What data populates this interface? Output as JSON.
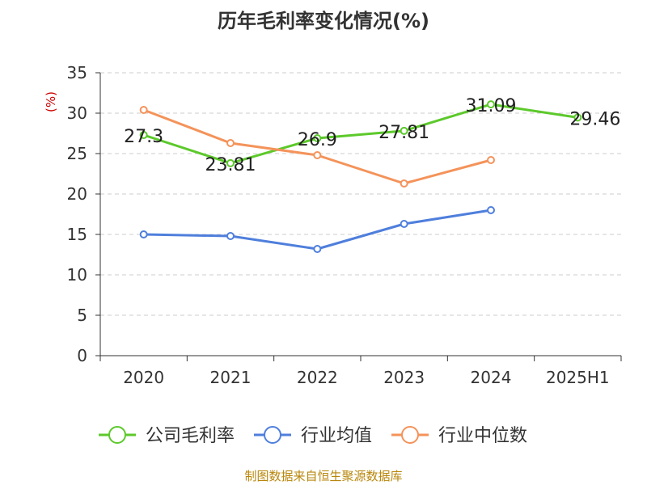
{
  "chart_data": {
    "type": "line",
    "title": "历年毛利率变化情况(%)",
    "ylabel": "(%)",
    "xlabel": "",
    "ylim": [
      0,
      35
    ],
    "yticks": [
      0,
      5,
      10,
      15,
      20,
      25,
      30,
      35
    ],
    "grid": true,
    "legend_position": "bottom",
    "categories": [
      "2020",
      "2021",
      "2022",
      "2023",
      "2024",
      "2025H1"
    ],
    "series": [
      {
        "name": "公司毛利率",
        "color": "#5cc92b",
        "values": [
          27.3,
          23.81,
          26.9,
          27.81,
          31.09,
          29.46
        ],
        "labels": [
          "27.3",
          "23.81",
          "26.9",
          "27.81",
          "31.09",
          "29.46"
        ]
      },
      {
        "name": "行业均值",
        "color": "#4f7fdc",
        "values": [
          15.0,
          14.8,
          13.2,
          16.3,
          18.0,
          null
        ],
        "labels": []
      },
      {
        "name": "行业中位数",
        "color": "#f4935a",
        "values": [
          30.4,
          26.3,
          24.8,
          21.3,
          24.2,
          null
        ],
        "labels": []
      }
    ],
    "source_note": "制图数据来自恒生聚源数据库"
  }
}
